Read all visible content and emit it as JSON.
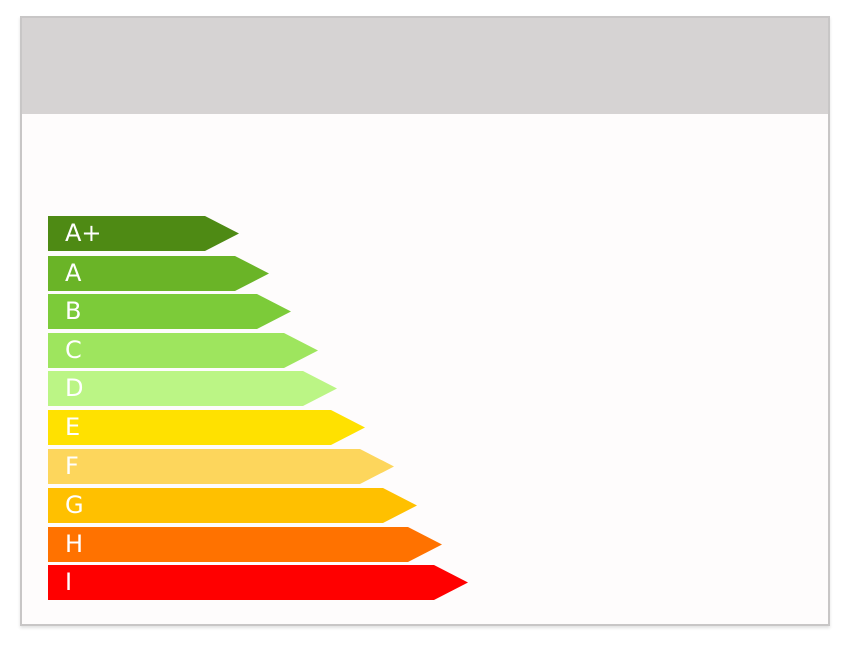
{
  "energy_scale": {
    "bands": [
      {
        "label": "A+",
        "color": "#4e8a14"
      },
      {
        "label": "A",
        "color": "#6ab427"
      },
      {
        "label": "B",
        "color": "#7ccb39"
      },
      {
        "label": "C",
        "color": "#9ee55e"
      },
      {
        "label": "D",
        "color": "#bbf585"
      },
      {
        "label": "E",
        "color": "#ffe100"
      },
      {
        "label": "F",
        "color": "#fdd65c"
      },
      {
        "label": "G",
        "color": "#ffc000"
      },
      {
        "label": "H",
        "color": "#ff7200"
      },
      {
        "label": "I",
        "color": "#ff0000"
      }
    ]
  }
}
